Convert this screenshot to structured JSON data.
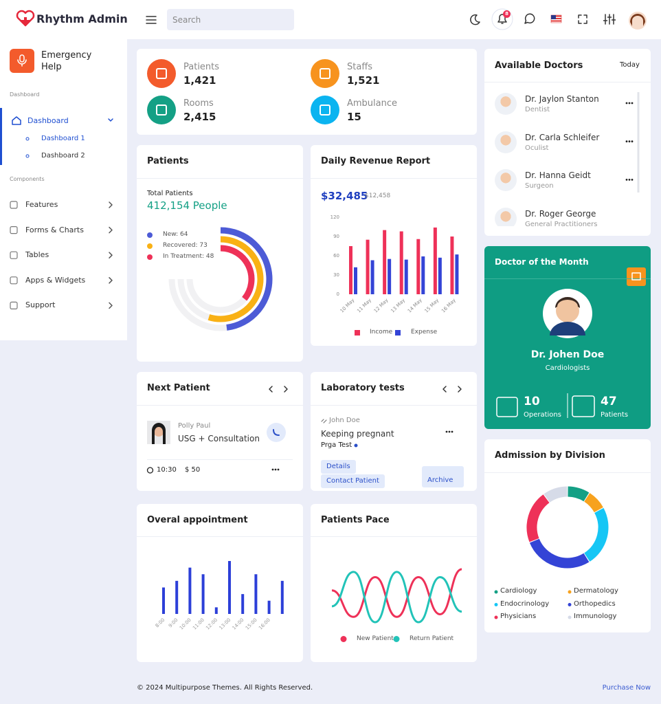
{
  "header": {
    "brand": "Rhythm Admin",
    "search_placeholder": "Search",
    "notifications": 8
  },
  "sidebar": {
    "emergency": "Emergency Help",
    "section_1": "Dashboard",
    "menu_active": "Dashboard",
    "submenu": [
      "Dashboard 1",
      "Dashboard 2"
    ],
    "section_2": "Components",
    "menu": [
      "Features",
      "Forms & Charts",
      "Tables",
      "Apps & Widgets",
      "Support"
    ]
  },
  "stats": [
    {
      "label": "Patients",
      "value": "1,421",
      "color": "#f35b2c"
    },
    {
      "label": "Staffs",
      "value": "1,521",
      "color": "#f7931e"
    },
    {
      "label": "Rooms",
      "value": "2,415",
      "color": "#14a085"
    },
    {
      "label": "Ambulance",
      "value": "15",
      "color": "#0bb4f0"
    }
  ],
  "patients_card": {
    "title": "Patients",
    "total_label": "Total Patients",
    "total": "412,154 People",
    "chart": {
      "type": "radial",
      "ylim": [
        0,
        100
      ],
      "series": [
        {
          "label": "New: 64",
          "value": 64,
          "color": "#4d5bd6"
        },
        {
          "label": "Recovered: 73",
          "value": 73,
          "color": "#f9b115"
        },
        {
          "label": "In Treatment: 48",
          "value": 48,
          "color": "#ee3158"
        }
      ]
    }
  },
  "revenue": {
    "title": "Daily Revenue Report",
    "total": "$32,485",
    "previous": "$12,458",
    "chart": {
      "type": "bar",
      "categories": [
        "10 May",
        "11 May",
        "12 May",
        "13 May",
        "14 May",
        "15 May",
        "16 May"
      ],
      "series": [
        {
          "name": "Income",
          "color": "#ee3158",
          "values": [
            75,
            85,
            100,
            98,
            86,
            104,
            90
          ]
        },
        {
          "name": "Expense",
          "color": "#3444d6",
          "values": [
            42,
            53,
            55,
            54,
            59,
            57,
            62
          ]
        }
      ],
      "ylim": [
        0,
        120
      ],
      "yticks": [
        0,
        30,
        60,
        90,
        120
      ]
    }
  },
  "doctors": {
    "title": "Available Doctors",
    "filter": "Today",
    "list": [
      {
        "name": "Dr. Jaylon Stanton",
        "role": "Dentist"
      },
      {
        "name": "Dr. Carla Schleifer",
        "role": "Oculist"
      },
      {
        "name": "Dr. Hanna Geidt",
        "role": "Surgeon"
      },
      {
        "name": "Dr. Roger George",
        "role": "General Practitioners"
      }
    ]
  },
  "doctor_of_month": {
    "title": "Doctor of the Month",
    "name": "Dr. Johen Doe",
    "role": "Cardiologists",
    "operations": 10,
    "operations_label": "Operations",
    "patients": 47,
    "patients_label": "Patients"
  },
  "next_patient": {
    "title": "Next Patient",
    "name": "Polly Paul",
    "service": "USG + Consultation",
    "time": "10:30",
    "fee": "$ 50"
  },
  "lab_tests": {
    "title": "Laboratory tests",
    "patient": "John Doe",
    "test": "Keeping pregnant",
    "type": "Prga Test",
    "buttons": [
      "Details",
      "Contact Patient",
      "Archive"
    ]
  },
  "appointments": {
    "title": "Overal appointment",
    "chart": {
      "type": "bar",
      "color": "#2c3fd8",
      "categories": [
        "8:00",
        "9:00",
        "10:00",
        "11:00",
        "12:00",
        "13:00",
        "14:00",
        "15:00",
        "16:00",
        null
      ],
      "values": [
        40,
        50,
        70,
        60,
        10,
        80,
        30,
        60,
        20,
        50
      ]
    }
  },
  "patients_pace": {
    "title": "Patients Pace",
    "chart": {
      "type": "line",
      "series": [
        {
          "name": "New Patient",
          "color": "#ee3158",
          "values": [
            60,
            10,
            85,
            10,
            85,
            15,
            100
          ]
        },
        {
          "name": "Return Patient",
          "color": "#22c3b8",
          "values": [
            30,
            95,
            0,
            95,
            0,
            85,
            20
          ]
        }
      ]
    }
  },
  "admission": {
    "title": "Admission by Division",
    "chart": {
      "type": "donut",
      "categories": [
        "Cardiology",
        "Dermatology",
        "Endocrinology",
        "Orthopedics",
        "Physicians",
        "Immunology"
      ],
      "values": [
        9,
        8,
        24,
        28,
        21,
        10
      ],
      "colors": [
        "#14a085",
        "#f7a21e",
        "#16c6f5",
        "#3444d6",
        "#ee3158",
        "#d6dbe8"
      ]
    }
  },
  "footer": {
    "copyright": "© 2024 Multipurpose Themes. All Rights Reserved.",
    "link": "Purchase Now"
  }
}
